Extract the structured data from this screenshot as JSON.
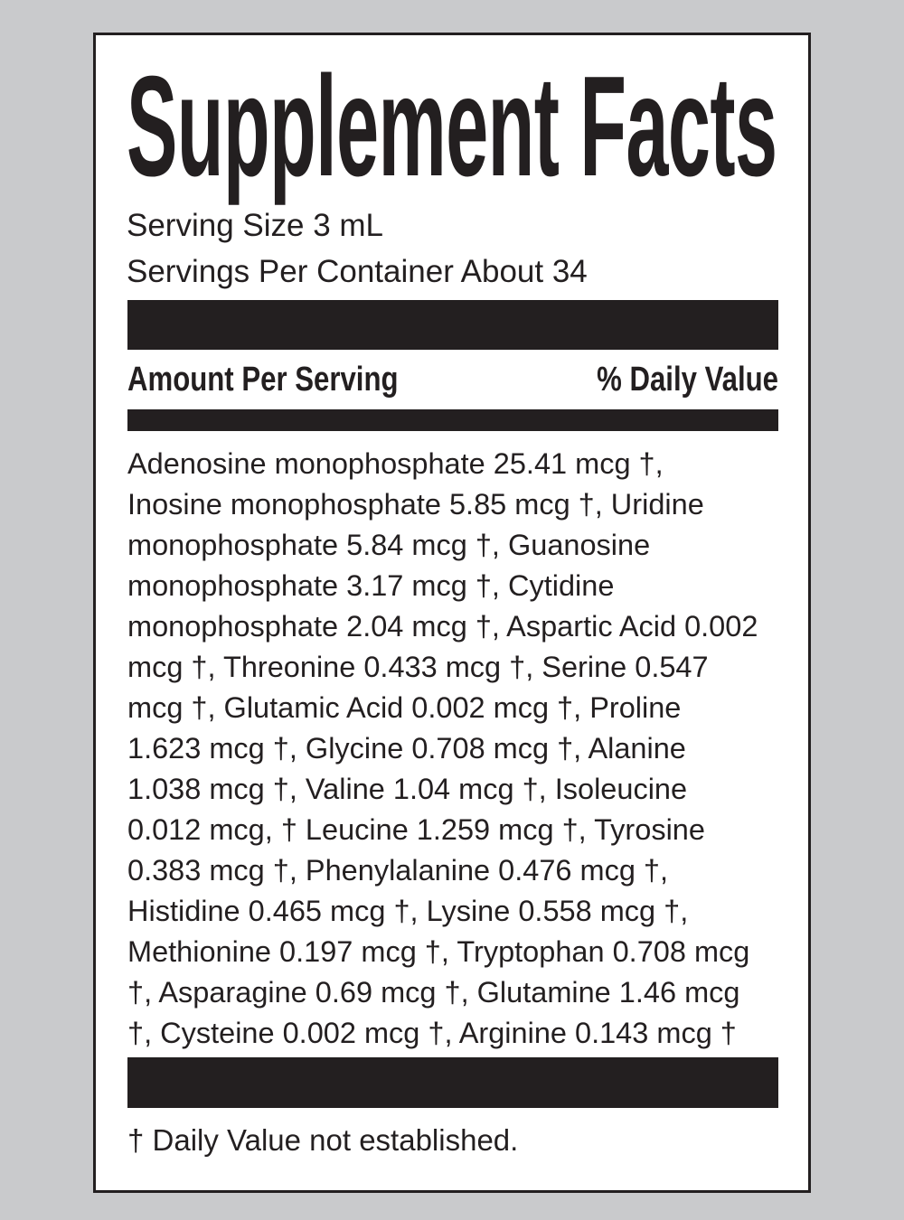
{
  "title": "Supplement Facts",
  "serving_size": "Serving Size 3 mL",
  "servings_per_container": "Servings Per Container About 34",
  "header": {
    "amount": "Amount Per Serving",
    "daily_value": "% Daily Value"
  },
  "ingredients_lines": [
    "Adenosine monophosphate 25.41 mcg †,",
    "Inosine monophosphate 5.85 mcg †, Uridine",
    "monophosphate 5.84 mcg †, Guanosine",
    "monophosphate 3.17 mcg †, Cytidine",
    "monophosphate 2.04 mcg †, Aspartic Acid 0.002",
    "mcg †, Threonine 0.433 mcg †, Serine 0.547",
    "mcg †, Glutamic Acid 0.002 mcg †, Proline",
    "1.623 mcg †, Glycine 0.708 mcg †, Alanine",
    "1.038 mcg †, Valine 1.04 mcg †, Isoleucine",
    "0.012 mcg, † Leucine 1.259 mcg †, Tyrosine",
    "0.383 mcg †, Phenylalanine 0.476 mcg †,",
    "Histidine 0.465 mcg †, Lysine 0.558 mcg †,",
    "Methionine 0.197 mcg †, Tryptophan 0.708 mcg",
    "†, Asparagine 0.69 mcg †, Glutamine 1.46 mcg",
    "†, Cysteine 0.002 mcg †, Arginine 0.143 mcg †"
  ],
  "footnote": "† Daily Value not established.",
  "colors": {
    "background": "#c9cacc",
    "ink": "#231f20",
    "panel": "#ffffff"
  }
}
